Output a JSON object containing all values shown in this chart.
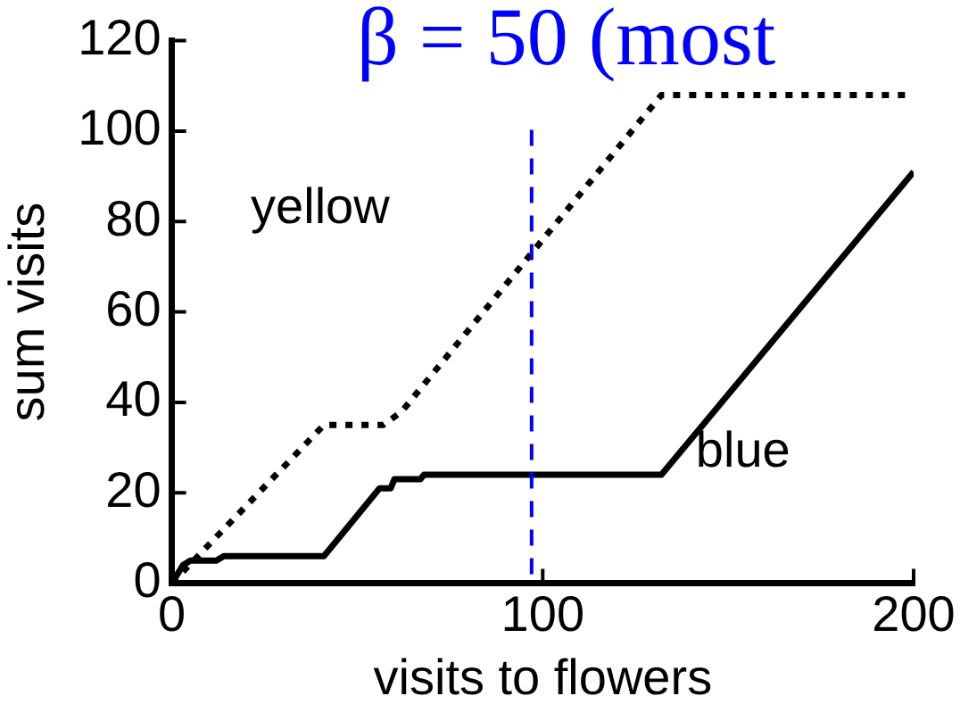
{
  "chart_data": {
    "type": "line",
    "title": "β = 50 (most",
    "xlabel": "visits to flowers",
    "ylabel": "sum visits",
    "xlim": [
      0,
      200
    ],
    "xticks": [
      0,
      100,
      200
    ],
    "ylim": [
      0,
      120
    ],
    "yticks": [
      0,
      20,
      40,
      60,
      80,
      100,
      120
    ],
    "grid": false,
    "legend": false,
    "marker": "none",
    "series": [
      {
        "color": "#000000",
        "line_style": "dotted",
        "x": [
          0,
          41,
          57,
          62,
          132,
          200
        ],
        "values": [
          0,
          35,
          35,
          38,
          108,
          108
        ]
      },
      {
        "color": "#000000",
        "line_style": "solid",
        "x": [
          0,
          3,
          5,
          12,
          14,
          41,
          45,
          55,
          56,
          59,
          60,
          67,
          68,
          132,
          200
        ],
        "values": [
          0,
          4,
          5,
          5,
          6,
          6,
          10,
          20,
          21,
          21,
          23,
          23,
          24,
          24,
          91
        ]
      }
    ],
    "ref_lines": [
      {
        "axis": "x",
        "value": 97,
        "color": "#0000ff",
        "line_style": "dashed"
      }
    ],
    "annotations": [
      "yellow",
      "blue"
    ]
  }
}
